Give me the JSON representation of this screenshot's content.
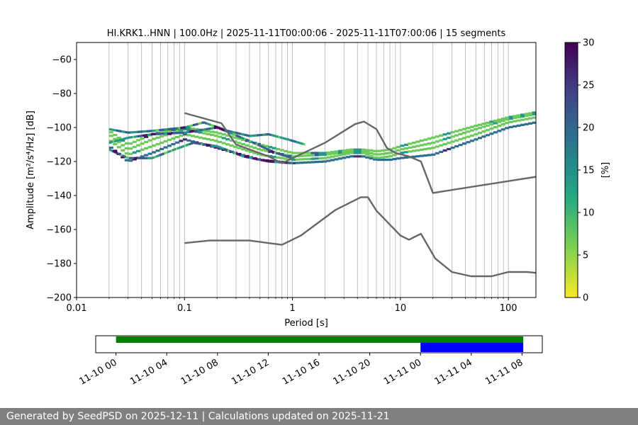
{
  "footer_text": "Generated by SeedPSD on 2025-12-11 | Calculations updated on 2025-11-21",
  "chart_data": [
    {
      "type": "heatmap",
      "title": "HI.KRK1..HNN | 100.0Hz | 2025-11-11T00:00:06 - 2025-11-11T07:00:06 | 15 segments",
      "xlabel": "Period [s]",
      "ylabel": "Amplitude [m²/s⁴/Hz] [dB]",
      "xscale": "log",
      "xlim": [
        0.01,
        180
      ],
      "ylim": [
        -200,
        -50
      ],
      "xticks": [
        0.01,
        0.1,
        1,
        10,
        100
      ],
      "xtick_labels": [
        "0.01",
        "0.1",
        "1",
        "10",
        "100"
      ],
      "yticks": [
        -200,
        -180,
        -160,
        -140,
        -120,
        -100,
        -80,
        -60
      ],
      "ytick_labels": [
        "−200",
        "−180",
        "−160",
        "−140",
        "−120",
        "−100",
        "−80",
        "−60"
      ],
      "grid": "vertical-log",
      "colorbar": {
        "label": "[%]",
        "range": [
          0,
          30
        ],
        "ticks": [
          0,
          5,
          10,
          15,
          20,
          25,
          30
        ],
        "tick_labels": [
          "0",
          "5",
          "10",
          "15",
          "20",
          "25",
          "30"
        ],
        "colormap": "viridis_r"
      },
      "psd_curves": [
        {
          "x": [
            0.02,
            0.03,
            0.05,
            0.1,
            0.2,
            0.5,
            1,
            2,
            3.5,
            4.5,
            6,
            8,
            10,
            20,
            50,
            100,
            180
          ],
          "y": [
            -111,
            -120,
            -115,
            -107,
            -112,
            -119,
            -121,
            -120,
            -117,
            -117,
            -119,
            -119,
            -118,
            -116,
            -107,
            -100,
            -97
          ]
        },
        {
          "x": [
            0.02,
            0.03,
            0.05,
            0.1,
            0.2,
            0.5,
            1,
            2,
            3.5,
            4.5,
            6,
            8,
            10,
            20,
            50,
            100,
            180
          ],
          "y": [
            -107,
            -116,
            -111,
            -104,
            -108,
            -116,
            -119,
            -118,
            -115,
            -115,
            -118,
            -117,
            -115,
            -112,
            -104,
            -97,
            -94
          ]
        },
        {
          "x": [
            0.02,
            0.03,
            0.05,
            0.1,
            0.2,
            0.5,
            1,
            2,
            3.5,
            4.5,
            6,
            8,
            10,
            20,
            50,
            100,
            180
          ],
          "y": [
            -104,
            -113,
            -107,
            -101,
            -105,
            -113,
            -117,
            -116,
            -114,
            -114,
            -116,
            -115,
            -113,
            -109,
            -101,
            -95,
            -92
          ]
        },
        {
          "x": [
            0.02,
            0.03,
            0.05,
            0.1,
            0.2,
            0.5,
            1,
            2,
            3.5,
            4.5,
            6,
            8,
            10,
            20,
            50,
            100,
            180
          ],
          "y": [
            -102,
            -110,
            -104,
            -100,
            -103,
            -110,
            -115,
            -115,
            -113,
            -113,
            -114,
            -113,
            -111,
            -106,
            -99,
            -94,
            -91
          ]
        },
        {
          "x": [
            0.02,
            0.03,
            0.05,
            0.1,
            0.15,
            0.25,
            0.4,
            0.6,
            0.9,
            1.3
          ],
          "y": [
            -101,
            -103,
            -102,
            -100,
            -97,
            -102,
            -105,
            -104,
            -107,
            -110
          ]
        },
        {
          "x": [
            0.02,
            0.03,
            0.05,
            0.08,
            0.12,
            0.2,
            0.35,
            0.6,
            1
          ],
          "y": [
            -113,
            -118,
            -118,
            -113,
            -109,
            -111,
            -117,
            -120,
            -121
          ]
        },
        {
          "x": [
            0.02,
            0.03,
            0.05,
            0.1,
            0.2,
            0.4,
            0.7,
            1
          ],
          "y": [
            -109,
            -106,
            -104,
            -103,
            -100,
            -108,
            -115,
            -118
          ]
        }
      ],
      "noise_model_lines": [
        {
          "name": "",
          "x": [
            0.1,
            0.22,
            0.3,
            0.6,
            0.8,
            2,
            3.8,
            4.6,
            6,
            7.5,
            9,
            12,
            15.5,
            20,
            180
          ],
          "y": [
            -91.5,
            -97.5,
            -110,
            -117,
            -121,
            -109,
            -98,
            -96.5,
            -101,
            -112,
            -115,
            -117,
            -120,
            -138.5,
            -129
          ]
        },
        {
          "name": "",
          "x": [
            0.1,
            0.17,
            0.4,
            0.8,
            1.2,
            2.5,
            4.3,
            5,
            6,
            10,
            12,
            15.5,
            21,
            30,
            45,
            70,
            100,
            150,
            180
          ],
          "y": [
            -168,
            -166.5,
            -166.5,
            -169,
            -163.5,
            -148.5,
            -141,
            -141,
            -149,
            -163.5,
            -166,
            -162.5,
            -177,
            -185,
            -187.5,
            -187.5,
            -185,
            -185,
            -185.5
          ]
        }
      ]
    },
    {
      "type": "timeline",
      "tick_labels": [
        "11-10 00",
        "11-10 04",
        "11-10 08",
        "11-10 12",
        "11-10 16",
        "11-10 20",
        "11-11 00",
        "11-11 04",
        "11-11 08"
      ],
      "xlim_hours": [
        -1.6,
        33.6
      ],
      "bars": [
        {
          "color": "#008000",
          "start_hours": 0,
          "end_hours": 32.1
        },
        {
          "color": "#0000ff",
          "start_hours": 24,
          "end_hours": 32.1
        }
      ]
    }
  ]
}
